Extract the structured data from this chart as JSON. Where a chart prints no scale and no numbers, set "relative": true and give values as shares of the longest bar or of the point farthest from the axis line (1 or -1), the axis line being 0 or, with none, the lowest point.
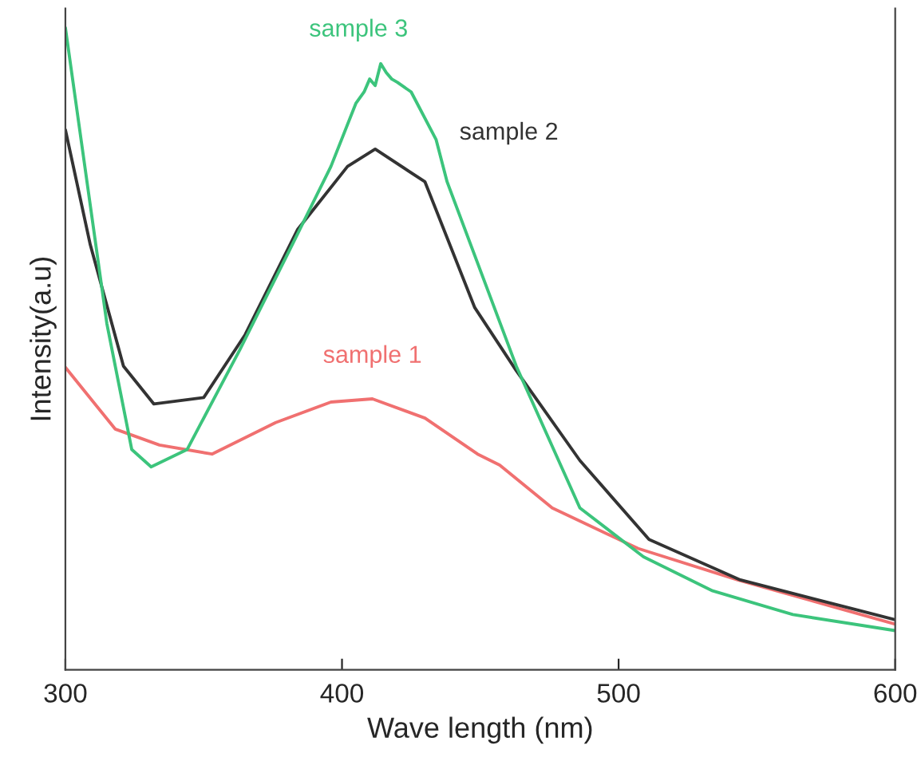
{
  "chart_data": {
    "type": "line",
    "relative": true,
    "xlabel": "Wave length (nm)",
    "ylabel": "Intensity(a.u)",
    "xlim": [
      300,
      600
    ],
    "xticks": [
      300,
      400,
      500,
      600
    ],
    "grid": false,
    "legend": false,
    "marker": "none",
    "line_style": "solid",
    "series": [
      {
        "name": "sample 1",
        "color": "#f07070",
        "x": [
          300,
          318,
          334,
          353,
          376,
          396,
          411,
          430,
          449,
          457,
          476,
          507,
          543,
          600
        ],
        "values": [
          0.471,
          0.375,
          0.35,
          0.336,
          0.385,
          0.417,
          0.422,
          0.392,
          0.336,
          0.319,
          0.252,
          0.189,
          0.14,
          0.071
        ]
      },
      {
        "name": "sample 2",
        "color": "#333333",
        "x": [
          300,
          309,
          321,
          332,
          350,
          365,
          384,
          402,
          412,
          430,
          448,
          463,
          486,
          511,
          544,
          600
        ],
        "values": [
          0.841,
          0.662,
          0.473,
          0.414,
          0.424,
          0.522,
          0.686,
          0.784,
          0.811,
          0.76,
          0.564,
          0.466,
          0.326,
          0.203,
          0.14,
          0.078
        ]
      },
      {
        "name": "sample 3",
        "color": "#3cc47c",
        "x": [
          300,
          315,
          324,
          331,
          344,
          363,
          382,
          396,
          405,
          408,
          410,
          412,
          414,
          416,
          418,
          420,
          425,
          434,
          438,
          463,
          486,
          509,
          534,
          563,
          600
        ],
        "values": [
          1.0,
          0.539,
          0.343,
          0.316,
          0.343,
          0.498,
          0.662,
          0.784,
          0.882,
          0.9,
          0.92,
          0.91,
          0.944,
          0.93,
          0.92,
          0.915,
          0.9,
          0.826,
          0.76,
          0.473,
          0.252,
          0.176,
          0.123,
          0.086,
          0.061
        ]
      }
    ]
  }
}
